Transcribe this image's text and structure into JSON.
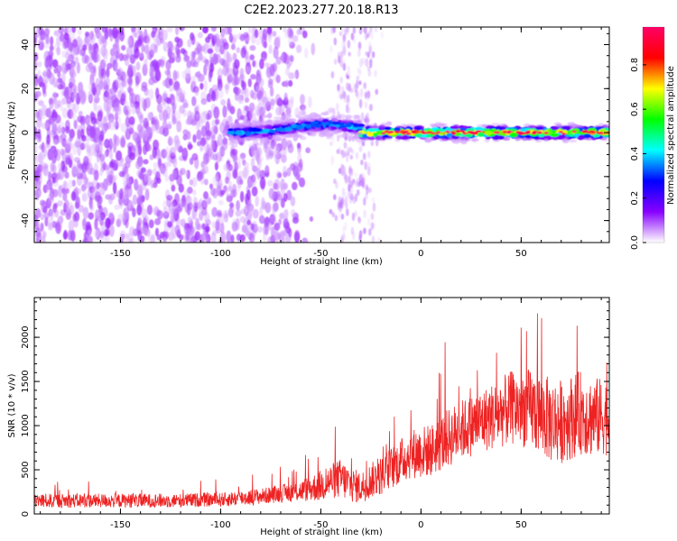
{
  "figure": {
    "title": "C2E2.2023.277.20.18.R13"
  },
  "chart_data": [
    {
      "type": "heatmap",
      "title": "",
      "xlabel": "Height of straight line (km)",
      "ylabel": "Frequency (Hz)",
      "xlim": [
        -193,
        94
      ],
      "ylim": [
        -50,
        48
      ],
      "xticks": [
        -150,
        -100,
        -50,
        0,
        50
      ],
      "yticks": [
        -40,
        -20,
        0,
        20,
        40
      ],
      "grid": false,
      "colorbar": {
        "label": "Normalized spectral amplitude",
        "range": [
          0,
          0.97
        ],
        "ticks": [
          0.0,
          0.2,
          0.4,
          0.6,
          0.8
        ],
        "colormap": [
          "#ffffff",
          "#8800ff",
          "#0000ff",
          "#00ffff",
          "#00ff00",
          "#ffff00",
          "#ff0000",
          "#ff0066"
        ]
      },
      "features": [
        {
          "description": "broadband low-amplitude noise",
          "x_range": [
            -193,
            -60
          ],
          "y_range": [
            -50,
            48
          ],
          "amplitude": 0.1
        },
        {
          "description": "narrow band near 0 Hz",
          "x_range": [
            -95,
            94
          ],
          "y_center": 0,
          "amplitude_range": [
            0.3,
            0.95
          ]
        }
      ]
    },
    {
      "type": "line",
      "title": "",
      "xlabel": "Height of straight line (km)",
      "ylabel": "SNR (10 * v/v)",
      "xlim": [
        -193,
        94
      ],
      "ylim": [
        0,
        2450
      ],
      "xticks": [
        -150,
        -100,
        -50,
        0,
        50
      ],
      "yticks": [
        0,
        500,
        1000,
        1500,
        2000
      ],
      "grid": false,
      "line_color": "#ee2222",
      "x": [
        -190,
        -180,
        -170,
        -160,
        -150,
        -140,
        -130,
        -120,
        -110,
        -100,
        -90,
        -80,
        -70,
        -60,
        -50,
        -45,
        -40,
        -35,
        -30,
        -25,
        -20,
        -15,
        -10,
        -5,
        0,
        5,
        10,
        15,
        20,
        25,
        30,
        35,
        40,
        45,
        50,
        55,
        60,
        65,
        70,
        75,
        80,
        85,
        90
      ],
      "y": [
        150,
        150,
        150,
        150,
        150,
        150,
        150,
        150,
        160,
        160,
        180,
        200,
        230,
        260,
        320,
        370,
        400,
        330,
        300,
        380,
        430,
        520,
        600,
        680,
        700,
        720,
        800,
        880,
        950,
        1000,
        1050,
        1100,
        1150,
        1200,
        1200,
        1180,
        1130,
        1050,
        1050,
        1100,
        1150,
        1100,
        1100
      ],
      "spread": [
        80,
        80,
        80,
        80,
        80,
        80,
        80,
        80,
        80,
        80,
        90,
        90,
        100,
        120,
        180,
        200,
        230,
        200,
        180,
        200,
        220,
        240,
        260,
        280,
        300,
        300,
        320,
        340,
        340,
        350,
        360,
        380,
        400,
        420,
        440,
        460,
        480,
        480,
        480,
        480,
        480,
        460,
        440
      ]
    }
  ]
}
